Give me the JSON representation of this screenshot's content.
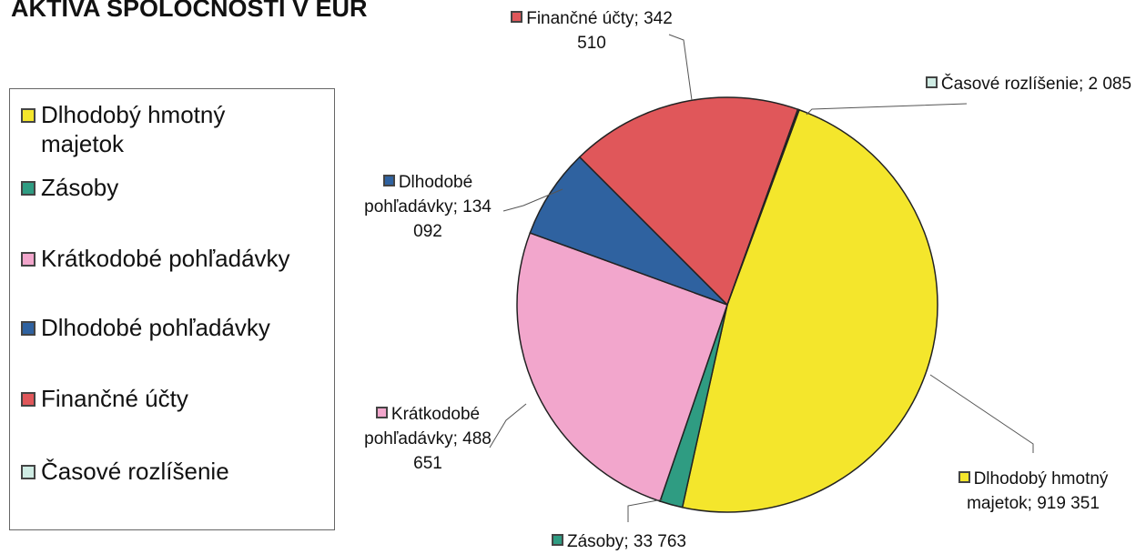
{
  "chart_data": {
    "type": "pie",
    "title": "AKTÍVA SPOLOČNOSTI V EUR",
    "categories": [
      "Dlhodobý hmotný majetok",
      "Zásoby",
      "Krátkodobé pohľadávky",
      "Dlhodobé pohľadávky",
      "Finančné účty",
      "Časové rozlíšenie"
    ],
    "values": [
      919351,
      33763,
      488651,
      134092,
      342510,
      2085
    ],
    "value_labels": [
      "919 351",
      "33 763",
      "488 651",
      "134 092",
      "342 510",
      "2 085"
    ],
    "colors": [
      "#f4e62c",
      "#2f9c82",
      "#f2a6cc",
      "#2f62a0",
      "#e0575a",
      "#cfece4"
    ],
    "legend": "left"
  }
}
